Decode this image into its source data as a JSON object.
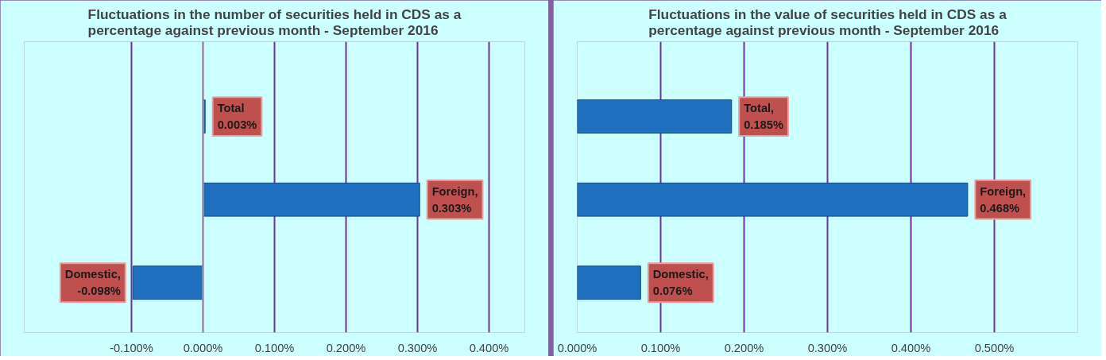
{
  "chart_data": [
    {
      "type": "bar",
      "orientation": "horizontal",
      "title": "Fluctuations in the number of securities held in CDS as a\npercentage against previous month - September 2016",
      "categories": [
        null,
        null,
        null
      ],
      "values": [
        0.003,
        0.303,
        -0.098
      ],
      "color": "#1f6fbf",
      "value_labels": [
        "Total\n0.003%",
        "Foreign,\n0.303%",
        "Domestic,\n-0.098%"
      ],
      "xlim": [
        -0.25,
        0.45
      ],
      "xticks": [
        {
          "value": -0.1,
          "label": "-0.100%"
        },
        {
          "value": 0,
          "label": "0.000%"
        },
        {
          "value": 0.1,
          "label": "0.100%"
        },
        {
          "value": 0.2,
          "label": "0.200%"
        },
        {
          "value": 0.3,
          "label": "0.300%"
        },
        {
          "value": 0.4,
          "label": "0.400%"
        }
      ],
      "grid": "x"
    },
    {
      "type": "bar",
      "orientation": "horizontal",
      "title": "Fluctuations in the value of securities held in CDS as a\npercentage against previous month - September 2016",
      "categories": [
        null,
        null,
        null
      ],
      "values": [
        0.185,
        0.468,
        0.076
      ],
      "color": "#1f6fbf",
      "value_labels": [
        "Total,\n0.185%",
        "Foreign,\n0.468%",
        "Domestic,\n0.076%"
      ],
      "xlim": [
        0,
        0.6
      ],
      "xticks": [
        {
          "value": 0,
          "label": "0.000%"
        },
        {
          "value": 0.1,
          "label": "0.100%"
        },
        {
          "value": 0.2,
          "label": "0.200%"
        },
        {
          "value": 0.3,
          "label": "0.300%"
        },
        {
          "value": 0.4,
          "label": "0.400%"
        },
        {
          "value": 0.5,
          "label": "0.500%"
        }
      ],
      "grid": "x"
    }
  ]
}
